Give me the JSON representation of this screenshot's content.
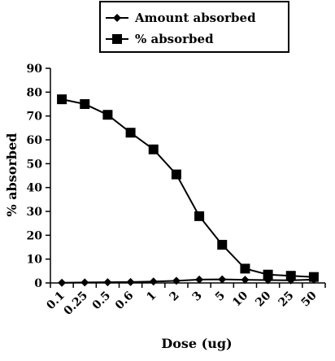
{
  "chart_data": {
    "type": "line",
    "title": "",
    "xlabel": "Dose (ug)",
    "ylabel": "% absorbed",
    "categories": [
      "0.1",
      "0.25",
      "0.5",
      "0.6",
      "1",
      "2",
      "3",
      "5",
      "10",
      "20",
      "25",
      "50"
    ],
    "ylim": [
      0,
      90
    ],
    "yticks": [
      0,
      10,
      20,
      30,
      40,
      50,
      60,
      70,
      80,
      90
    ],
    "grid": false,
    "legend_position": "top",
    "series": [
      {
        "name": "Amount absorbed",
        "marker": "diamond",
        "color": "#000000",
        "values": [
          0.1,
          0.2,
          0.3,
          0.4,
          0.6,
          0.9,
          1.4,
          1.5,
          1.3,
          1.2,
          1.1,
          1.4
        ]
      },
      {
        "name": "% absorbed",
        "marker": "square",
        "color": "#000000",
        "values": [
          77,
          75,
          70.5,
          63,
          56,
          45.5,
          28,
          16,
          6,
          3.5,
          3,
          2.5
        ]
      }
    ]
  }
}
